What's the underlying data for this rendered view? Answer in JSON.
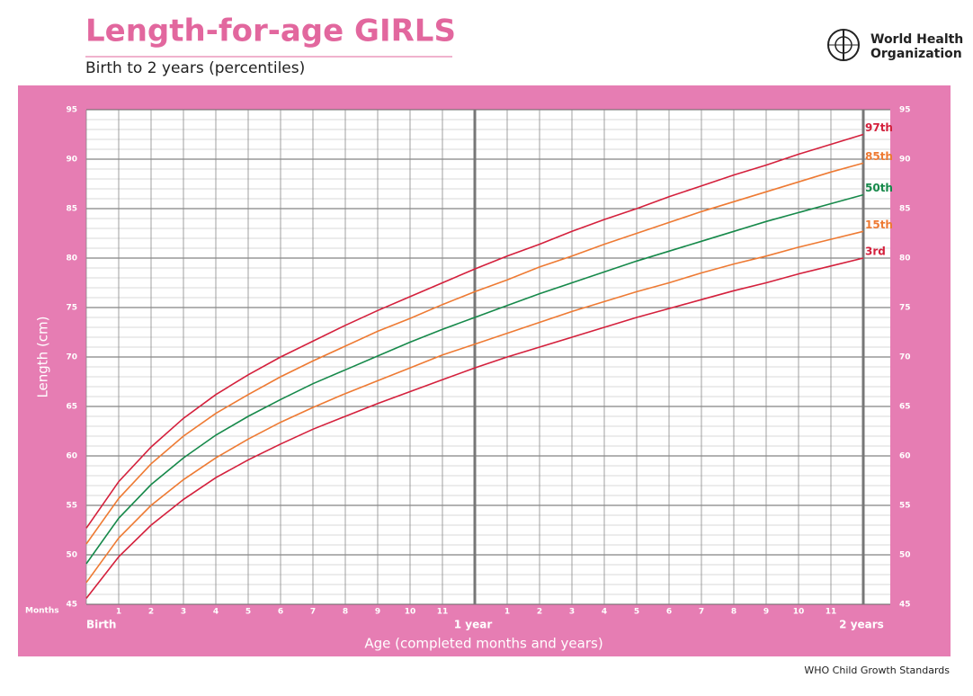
{
  "header": {
    "title": "Length-for-age GIRLS",
    "subtitle": "Birth to 2 years (percentiles)",
    "logo_text": [
      "World Health",
      "Organization"
    ]
  },
  "footer": "WHO Child Growth Standards",
  "chart_data": {
    "type": "line",
    "ylabel": "Length (cm)",
    "xlabel": "Age (completed months and years)",
    "x_unit_label": "Months",
    "x": [
      0,
      1,
      2,
      3,
      4,
      5,
      6,
      7,
      8,
      9,
      10,
      11,
      12,
      13,
      14,
      15,
      16,
      17,
      18,
      19,
      20,
      21,
      22,
      23,
      24
    ],
    "xlim": [
      0,
      24
    ],
    "xticks": [
      {
        "value": 0,
        "label": "Birth"
      },
      1,
      2,
      3,
      4,
      5,
      6,
      7,
      8,
      9,
      10,
      11,
      {
        "value": 12,
        "label": "1 year"
      },
      {
        "value": 13,
        "label": "1"
      },
      {
        "value": 14,
        "label": "2"
      },
      {
        "value": 15,
        "label": "3"
      },
      {
        "value": 16,
        "label": "4"
      },
      {
        "value": 17,
        "label": "5"
      },
      {
        "value": 18,
        "label": "6"
      },
      {
        "value": 19,
        "label": "7"
      },
      {
        "value": 20,
        "label": "8"
      },
      {
        "value": 21,
        "label": "9"
      },
      {
        "value": 22,
        "label": "10"
      },
      {
        "value": 23,
        "label": "11"
      },
      {
        "value": 24,
        "label": "2 years"
      }
    ],
    "ylim": [
      45,
      95
    ],
    "yticks": [
      45,
      50,
      55,
      60,
      65,
      70,
      75,
      80,
      85,
      90,
      95
    ],
    "y2lim": [
      45,
      95
    ],
    "y2ticks": [
      45,
      50,
      55,
      60,
      65,
      70,
      75,
      80,
      85,
      90,
      95
    ],
    "grid": true,
    "series": [
      {
        "name": "97th",
        "color": "#d4203c",
        "values": [
          52.7,
          57.4,
          60.9,
          63.8,
          66.2,
          68.2,
          70.0,
          71.6,
          73.2,
          74.7,
          76.1,
          77.5,
          78.9,
          80.2,
          81.4,
          82.7,
          83.9,
          85.0,
          86.2,
          87.3,
          88.4,
          89.4,
          90.5,
          91.5,
          92.5
        ]
      },
      {
        "name": "85th",
        "color": "#ee7a33",
        "values": [
          51.1,
          55.7,
          59.2,
          62.0,
          64.3,
          66.2,
          68.0,
          69.6,
          71.1,
          72.6,
          73.9,
          75.3,
          76.6,
          77.8,
          79.1,
          80.2,
          81.4,
          82.5,
          83.6,
          84.7,
          85.7,
          86.7,
          87.7,
          88.7,
          89.6
        ]
      },
      {
        "name": "50th",
        "color": "#16894a",
        "values": [
          49.1,
          53.7,
          57.1,
          59.8,
          62.1,
          64.0,
          65.7,
          67.3,
          68.7,
          70.1,
          71.5,
          72.8,
          74.0,
          75.2,
          76.4,
          77.5,
          78.6,
          79.7,
          80.7,
          81.7,
          82.7,
          83.7,
          84.6,
          85.5,
          86.4
        ]
      },
      {
        "name": "15th",
        "color": "#ee7a33",
        "values": [
          47.2,
          51.7,
          55.0,
          57.6,
          59.8,
          61.7,
          63.4,
          64.9,
          66.3,
          67.6,
          68.9,
          70.2,
          71.3,
          72.4,
          73.5,
          74.6,
          75.6,
          76.6,
          77.5,
          78.5,
          79.4,
          80.2,
          81.1,
          81.9,
          82.7
        ]
      },
      {
        "name": "3rd",
        "color": "#d4203c",
        "values": [
          45.6,
          49.8,
          53.0,
          55.6,
          57.8,
          59.6,
          61.2,
          62.7,
          64.0,
          65.3,
          66.5,
          67.7,
          68.9,
          70.0,
          71.0,
          72.0,
          73.0,
          74.0,
          74.9,
          75.8,
          76.7,
          77.5,
          78.4,
          79.2,
          80.0
        ]
      }
    ]
  }
}
